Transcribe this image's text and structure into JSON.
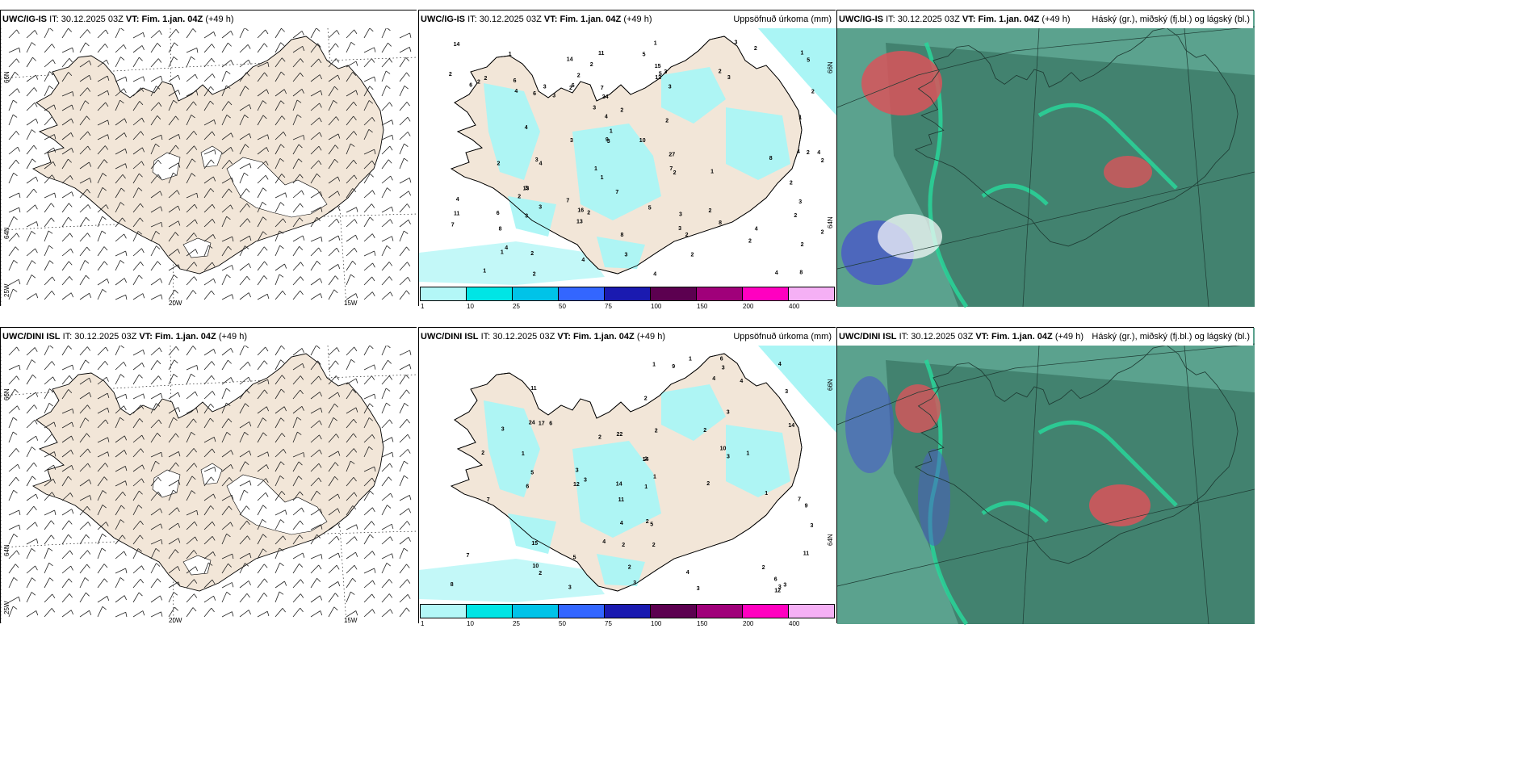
{
  "rows": [
    {
      "model": "UWC/IG-IS",
      "it_label": "IT:",
      "it_value": "30.12.2025 03Z",
      "vt_label": "VT:",
      "vt_value": "Fim. 1.jan. 04Z",
      "lead": "(+49 h)"
    },
    {
      "model": "UWC/DINI ISL",
      "it_label": "IT:",
      "it_value": "30.12.2025 03Z",
      "vt_label": "VT:",
      "vt_value": "Fim. 1.jan. 04Z",
      "lead": "(+49 h)"
    }
  ],
  "panel_titles": {
    "precip": "Uppsöfnuð úrkoma (mm)",
    "cloud": "Háský (gr.), miðský (fj.bl.) og lágský (bl.)"
  },
  "grid_labels": {
    "lat66": "66N",
    "lat64": "64N",
    "lat25w": "25W",
    "lon20": "20W",
    "lon15": "15W"
  },
  "colorbar": {
    "labels": [
      "1",
      "10",
      "25",
      "50",
      "75",
      "100",
      "150",
      "200",
      "400"
    ],
    "colors": [
      "#b3f7f7",
      "#00e5e5",
      "#00c3e8",
      "#3366ff",
      "#1a1ab0",
      "#5c0050",
      "#a0007a",
      "#ff00c0",
      "#f5b0f5"
    ]
  },
  "colors": {
    "land": "#f2e6d8",
    "precip": "#aaf5f5",
    "cloud_base": "#3e7c6a",
    "cloud_light": "#5ba28e",
    "cloud_green": "#29d69a",
    "cloud_red": "#d9545a",
    "cloud_blue": "#4a59c8"
  },
  "precip_values_top": [
    "2",
    "4",
    "4",
    "2",
    "1",
    "1",
    "1",
    "3",
    "2",
    "4",
    "3",
    "2",
    "2",
    "4",
    "3",
    "4",
    "5",
    "6",
    "7",
    "2",
    "3",
    "2",
    "4",
    "7",
    "13",
    "10",
    "2",
    "1",
    "3",
    "2",
    "3",
    "7",
    "8",
    "4",
    "11",
    "2",
    "9",
    "8",
    "16",
    "3",
    "2",
    "7",
    "6",
    "3",
    "1",
    "3",
    "2",
    "6",
    "2",
    "2",
    "8",
    "4",
    "5",
    "6",
    "8",
    "3",
    "4",
    "14",
    "2",
    "3",
    "2",
    "27",
    "24",
    "15",
    "5",
    "3",
    "2",
    "4",
    "2",
    "11",
    "8",
    "7",
    "2",
    "3",
    "3",
    "2",
    "6",
    "4",
    "5",
    "14",
    "12",
    "13",
    "2",
    "3",
    "2",
    "1",
    "1",
    "2",
    "1",
    "1",
    "2",
    "1",
    "3",
    "2",
    "4",
    "3",
    "2",
    "2"
  ],
  "precip_values_bottom": [
    "2",
    "2",
    "1",
    "3",
    "1",
    "3",
    "2",
    "3",
    "7",
    "2",
    "15",
    "7",
    "3",
    "5",
    "8",
    "9",
    "4",
    "14",
    "3",
    "6",
    "3",
    "7",
    "9",
    "6",
    "3",
    "12",
    "11",
    "6",
    "3",
    "4",
    "22",
    "14",
    "24",
    "2",
    "11",
    "4",
    "12",
    "14",
    "17",
    "3",
    "5",
    "4",
    "11",
    "3",
    "4",
    "10",
    "6",
    "10",
    "5",
    "2",
    "2",
    "2",
    "1",
    "1",
    "2",
    "1",
    "2",
    "3",
    "2",
    "1",
    "1",
    "4",
    "3",
    "3",
    "2",
    "2"
  ]
}
